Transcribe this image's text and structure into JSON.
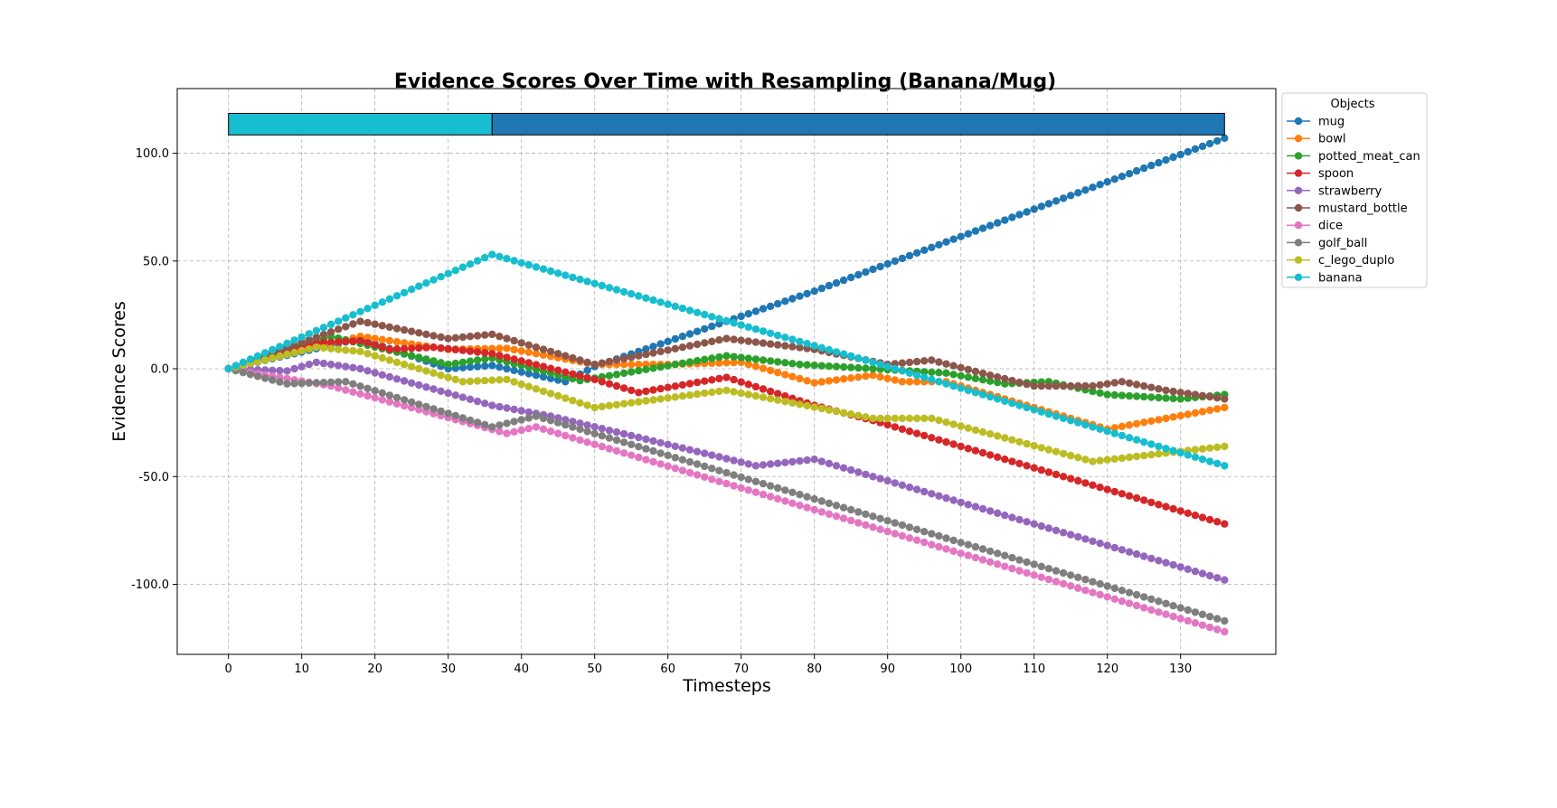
{
  "chart_data": {
    "type": "line",
    "title": "Evidence Scores Over Time with Resampling (Banana/Mug)",
    "xlabel": "Timesteps",
    "ylabel": "Evidence Scores",
    "xlim": [
      -7,
      143
    ],
    "ylim": [
      -132.5,
      130
    ],
    "x_ticks": [
      0,
      10,
      20,
      30,
      40,
      50,
      60,
      70,
      80,
      90,
      100,
      110,
      120,
      130
    ],
    "x_tick_labels": [
      "0",
      "10",
      "20",
      "30",
      "40",
      "50",
      "60",
      "70",
      "80",
      "90",
      "100",
      "110",
      "120",
      "130"
    ],
    "y_ticks": [
      -100,
      -50,
      0,
      50,
      100
    ],
    "y_tick_labels": [
      "-100.0",
      "-50.0",
      "0.0",
      "50.0",
      "100.0"
    ],
    "grid": true,
    "legend": {
      "title": "Objects",
      "placement": "right"
    },
    "x_max": 136,
    "target_bar": {
      "y_range": [
        108.5,
        118.5
      ],
      "segments": [
        {
          "object": "banana",
          "start": 0,
          "end": 36,
          "color": "#17becf"
        },
        {
          "object": "mug",
          "start": 36,
          "end": 136,
          "color": "#1f77b4"
        }
      ]
    },
    "series": [
      {
        "name": "mug",
        "color": "#1f77b4",
        "keypoints": [
          [
            0,
            0
          ],
          [
            18,
            14
          ],
          [
            30,
            0
          ],
          [
            36,
            1.5
          ],
          [
            46,
            -6
          ],
          [
            50,
            1
          ],
          [
            68,
            22
          ],
          [
            80,
            36
          ],
          [
            136,
            107
          ]
        ]
      },
      {
        "name": "bowl",
        "color": "#ff7f0e",
        "keypoints": [
          [
            0,
            0
          ],
          [
            18,
            15
          ],
          [
            30,
            9
          ],
          [
            38,
            9.5
          ],
          [
            50,
            2
          ],
          [
            60,
            2
          ],
          [
            70,
            3
          ],
          [
            80,
            -6.5
          ],
          [
            88,
            -3
          ],
          [
            92,
            -6
          ],
          [
            98,
            -6
          ],
          [
            120,
            -28
          ],
          [
            136,
            -18
          ]
        ]
      },
      {
        "name": "potted_meat_can",
        "color": "#2ca02c",
        "keypoints": [
          [
            0,
            0
          ],
          [
            14,
            15
          ],
          [
            30,
            2
          ],
          [
            36,
            5
          ],
          [
            48,
            -5.5
          ],
          [
            68,
            6
          ],
          [
            78,
            2
          ],
          [
            88,
            0
          ],
          [
            98,
            -2
          ],
          [
            106,
            -7
          ],
          [
            112,
            -6
          ],
          [
            120,
            -12
          ],
          [
            130,
            -14
          ],
          [
            136,
            -12
          ]
        ]
      },
      {
        "name": "spoon",
        "color": "#d62728",
        "keypoints": [
          [
            0,
            0
          ],
          [
            12,
            12
          ],
          [
            18,
            13
          ],
          [
            22,
            9
          ],
          [
            28,
            10
          ],
          [
            36,
            7
          ],
          [
            50,
            -5
          ],
          [
            56,
            -11
          ],
          [
            68,
            -4
          ],
          [
            80,
            -17
          ],
          [
            88,
            -24
          ],
          [
            136,
            -72
          ]
        ]
      },
      {
        "name": "strawberry",
        "color": "#9467bd",
        "keypoints": [
          [
            0,
            0
          ],
          [
            8,
            -1
          ],
          [
            12,
            3
          ],
          [
            18,
            0
          ],
          [
            36,
            -17
          ],
          [
            44,
            -22
          ],
          [
            72,
            -45
          ],
          [
            80,
            -42
          ],
          [
            136,
            -98
          ]
        ]
      },
      {
        "name": "mustard_bottle",
        "color": "#8c564b",
        "keypoints": [
          [
            0,
            0
          ],
          [
            18,
            22
          ],
          [
            30,
            14
          ],
          [
            36,
            16
          ],
          [
            50,
            2
          ],
          [
            68,
            14
          ],
          [
            80,
            9
          ],
          [
            90,
            2
          ],
          [
            96,
            4
          ],
          [
            104,
            -3
          ],
          [
            110,
            -8
          ],
          [
            118,
            -8
          ],
          [
            122,
            -6
          ],
          [
            128,
            -10
          ],
          [
            136,
            -14
          ]
        ]
      },
      {
        "name": "dice",
        "color": "#e377c2",
        "keypoints": [
          [
            0,
            0
          ],
          [
            14,
            -8
          ],
          [
            38,
            -30
          ],
          [
            42,
            -27
          ],
          [
            136,
            -122
          ]
        ]
      },
      {
        "name": "golf_ball",
        "color": "#7f7f7f",
        "keypoints": [
          [
            0,
            0
          ],
          [
            8,
            -7
          ],
          [
            16,
            -6
          ],
          [
            36,
            -27
          ],
          [
            42,
            -22
          ],
          [
            136,
            -117
          ]
        ]
      },
      {
        "name": "c_lego_duplo",
        "color": "#bcbd22",
        "keypoints": [
          [
            0,
            0
          ],
          [
            12,
            10
          ],
          [
            18,
            8
          ],
          [
            32,
            -6
          ],
          [
            38,
            -5
          ],
          [
            50,
            -18
          ],
          [
            68,
            -10
          ],
          [
            88,
            -23
          ],
          [
            96,
            -23
          ],
          [
            118,
            -43
          ],
          [
            136,
            -36
          ]
        ]
      },
      {
        "name": "banana",
        "color": "#17becf",
        "keypoints": [
          [
            0,
            0
          ],
          [
            36,
            53
          ],
          [
            88,
            3
          ],
          [
            136,
            -45
          ]
        ]
      }
    ]
  }
}
